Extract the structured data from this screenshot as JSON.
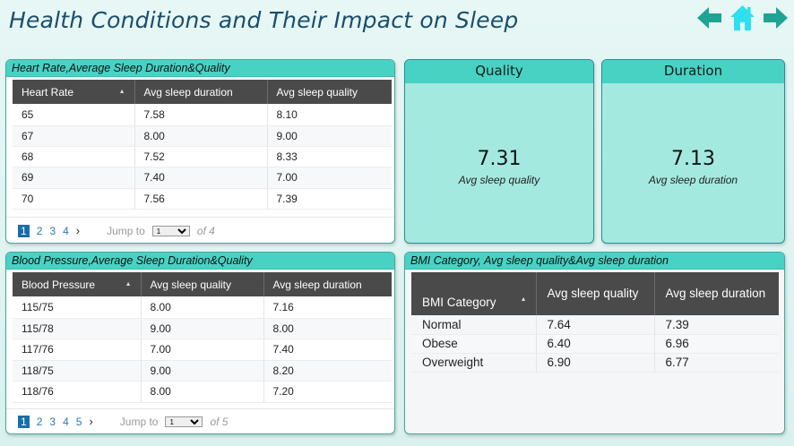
{
  "title": "Health Conditions and Their Impact on Sleep",
  "nav": {
    "back_icon": "arrow-left",
    "home_icon": "home",
    "forward_icon": "arrow-right",
    "color": "#1fa394",
    "home_color": "#2ee0ef"
  },
  "heart_panel": {
    "title": "Heart Rate,Average Sleep Duration&Quality",
    "columns": [
      "Heart Rate",
      "Avg sleep duration",
      "Avg sleep quality"
    ],
    "rows": [
      [
        "65",
        "7.58",
        "8.10"
      ],
      [
        "67",
        "8.00",
        "9.00"
      ],
      [
        "68",
        "7.52",
        "8.33"
      ],
      [
        "69",
        "7.40",
        "7.00"
      ],
      [
        "70",
        "7.56",
        "7.39"
      ]
    ],
    "pager": {
      "pages": [
        "1",
        "2",
        "3",
        "4"
      ],
      "active": "1",
      "next": "›",
      "jump_label": "Jump to",
      "jump_value": "1",
      "of_label": "of 4"
    }
  },
  "quality_card": {
    "header": "Quality",
    "value": "7.31",
    "label": "Avg sleep quality"
  },
  "duration_card": {
    "header": "Duration",
    "value": "7.13",
    "label": "Avg sleep duration"
  },
  "bp_panel": {
    "title": "Blood Pressure,Average Sleep Duration&Quality",
    "columns": [
      "Blood Pressure",
      "Avg sleep quality",
      "Avg sleep duration"
    ],
    "rows": [
      [
        "115/75",
        "8.00",
        "7.16"
      ],
      [
        "115/78",
        "9.00",
        "8.00"
      ],
      [
        "117/76",
        "7.00",
        "7.40"
      ],
      [
        "118/75",
        "9.00",
        "8.20"
      ],
      [
        "118/76",
        "8.00",
        "7.20"
      ]
    ],
    "pager": {
      "pages": [
        "1",
        "2",
        "3",
        "4",
        "5"
      ],
      "active": "1",
      "next": "›",
      "jump_label": "Jump to",
      "jump_value": "1",
      "of_label": "of 5"
    }
  },
  "bmi_panel": {
    "title": "BMI Category, Avg sleep quality&Avg sleep duration",
    "columns": [
      "BMI Category",
      "Avg sleep quality",
      "Avg sleep duration"
    ],
    "rows": [
      [
        "Normal",
        "7.64",
        "7.39"
      ],
      [
        "Obese",
        "6.40",
        "6.96"
      ],
      [
        "Overweight",
        "6.90",
        "6.77"
      ]
    ]
  }
}
